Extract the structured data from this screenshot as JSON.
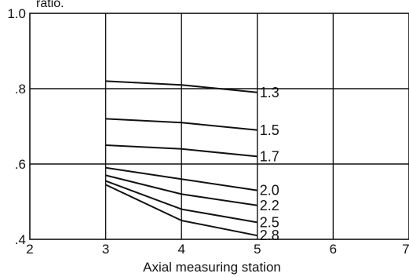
{
  "chart_data": {
    "type": "line",
    "top_label": "ratio.",
    "xlabel": "Axial measuring station",
    "ylabel": "",
    "xlim": [
      2,
      7
    ],
    "ylim": [
      0.4,
      1.0
    ],
    "x_ticks": [
      2,
      3,
      4,
      5,
      6,
      7
    ],
    "x_tick_labels": [
      "2",
      "3",
      "4",
      "5",
      "6",
      "7"
    ],
    "y_ticks": [
      0.4,
      0.6,
      0.8,
      1.0
    ],
    "y_tick_labels": [
      ".4",
      ".6",
      ".8",
      "1.0"
    ],
    "grid": true,
    "x": [
      3,
      4,
      5
    ],
    "series": [
      {
        "name": "1.3",
        "values": [
          0.82,
          0.81,
          0.79
        ]
      },
      {
        "name": "1.5",
        "values": [
          0.72,
          0.71,
          0.69
        ]
      },
      {
        "name": "1.7",
        "values": [
          0.65,
          0.64,
          0.62
        ]
      },
      {
        "name": "2.0",
        "values": [
          0.59,
          0.56,
          0.53
        ]
      },
      {
        "name": "2.2",
        "values": [
          0.57,
          0.52,
          0.49
        ]
      },
      {
        "name": "2.5",
        "values": [
          0.555,
          0.48,
          0.445
        ]
      },
      {
        "name": "2.8",
        "values": [
          0.545,
          0.45,
          0.41
        ]
      }
    ]
  }
}
